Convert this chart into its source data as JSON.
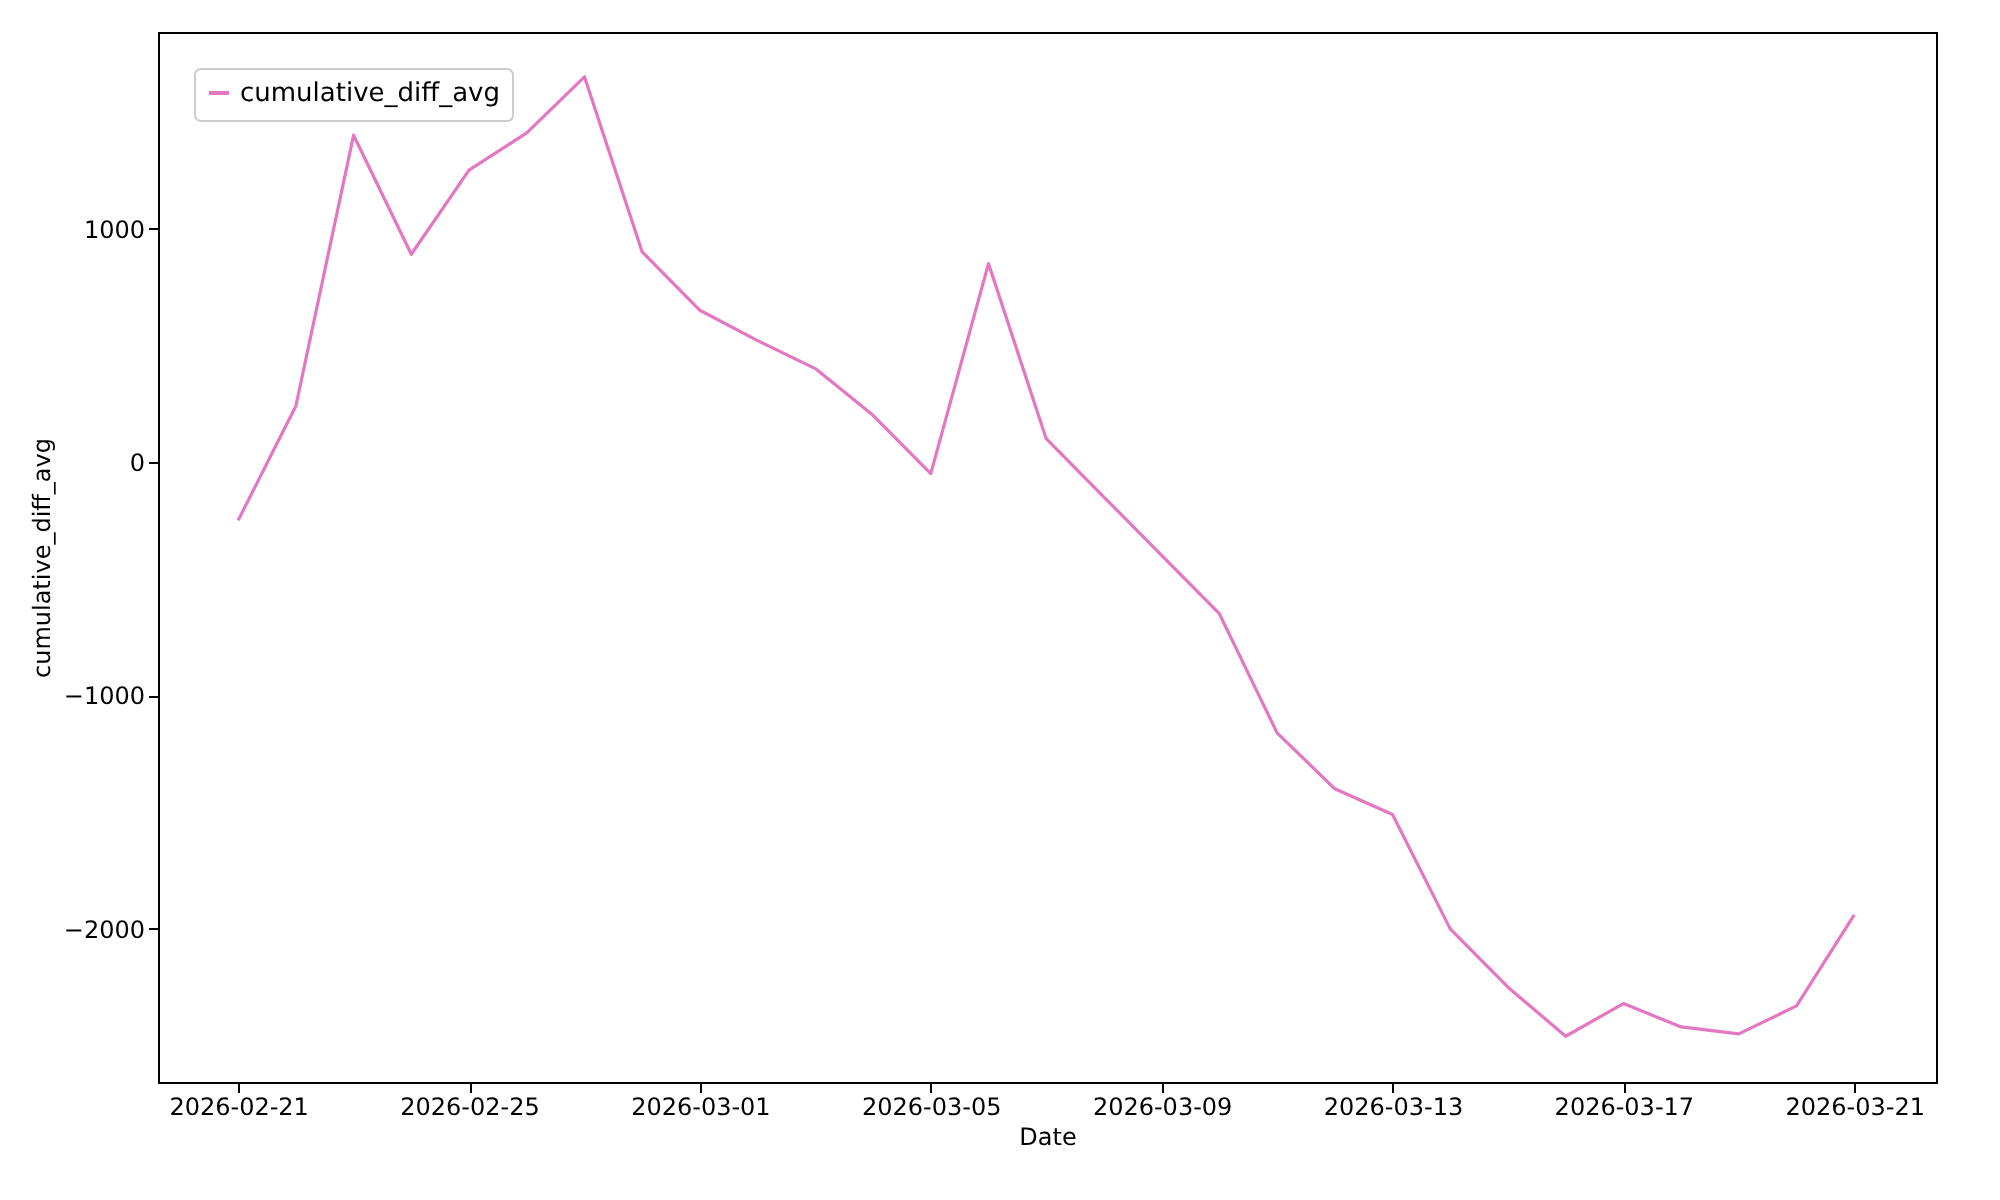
{
  "chart_data": {
    "type": "line",
    "xlabel": "Date",
    "ylabel": "cumulative_diff_avg",
    "x": [
      "2026-02-21",
      "2026-02-22",
      "2026-02-23",
      "2026-02-24",
      "2026-02-25",
      "2026-02-26",
      "2026-02-27",
      "2026-02-28",
      "2026-03-01",
      "2026-03-02",
      "2026-03-03",
      "2026-03-04",
      "2026-03-05",
      "2026-03-06",
      "2026-03-07",
      "2026-03-08",
      "2026-03-09",
      "2026-03-10",
      "2026-03-11",
      "2026-03-12",
      "2026-03-13",
      "2026-03-14",
      "2026-03-15",
      "2026-03-16",
      "2026-03-17",
      "2026-03-18",
      "2026-03-19",
      "2026-03-20",
      "2026-03-21"
    ],
    "series": [
      {
        "name": "cumulative_diff_avg",
        "color": "#e377c2",
        "values": [
          -250,
          240,
          1400,
          890,
          1250,
          1410,
          1650,
          900,
          650,
          520,
          400,
          200,
          -50,
          850,
          100,
          -150,
          -400,
          -650,
          -1160,
          -1400,
          -1510,
          -2000,
          -2250,
          -2460,
          -2320,
          -2420,
          -2450,
          -2330,
          -1940
        ]
      }
    ],
    "xlim": [
      "2026-02-19T14:40",
      "2026-03-22T10:00"
    ],
    "xticks": [
      "2026-02-21",
      "2026-02-25",
      "2026-03-01",
      "2026-03-05",
      "2026-03-09",
      "2026-03-13",
      "2026-03-17",
      "2026-03-21"
    ],
    "ylim": [
      -2656,
      1842
    ],
    "yticks": [
      {
        "value": -2000,
        "label": "−2000"
      },
      {
        "value": -1000,
        "label": "−1000"
      },
      0,
      1000
    ],
    "grid": false,
    "legend": "top left",
    "line_style": "solid",
    "marker": "none"
  }
}
